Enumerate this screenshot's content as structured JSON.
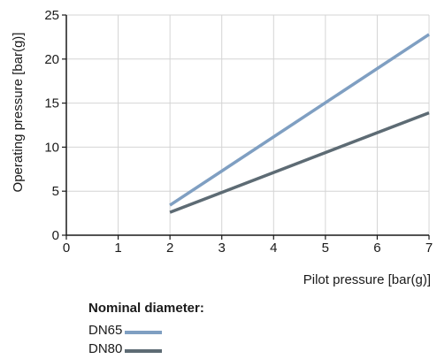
{
  "chart_data": {
    "type": "line",
    "xlabel": "Pilot pressure [bar(g)]",
    "ylabel": "Operating pressure [bar(g)]",
    "xlim": [
      0,
      7
    ],
    "ylim": [
      0,
      25
    ],
    "xticks": [
      0,
      1,
      2,
      3,
      4,
      5,
      6,
      7
    ],
    "yticks": [
      0,
      5,
      10,
      15,
      20,
      25
    ],
    "grid": true,
    "legend_title": "Nominal diameter:",
    "legend_position": "bottom",
    "series": [
      {
        "name": "DN65",
        "color": "#7f9fc2",
        "x": [
          2,
          7
        ],
        "y": [
          3.4,
          22.8
        ]
      },
      {
        "name": "DN80",
        "color": "#5d6b74",
        "x": [
          2,
          7
        ],
        "y": [
          2.6,
          13.9
        ]
      }
    ]
  }
}
